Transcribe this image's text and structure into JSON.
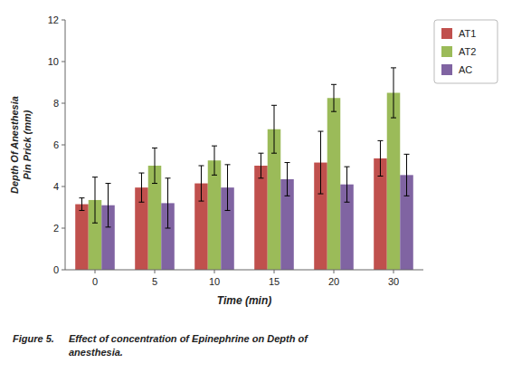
{
  "chart_data": {
    "type": "bar",
    "categories": [
      "0",
      "5",
      "10",
      "15",
      "20",
      "30"
    ],
    "series": [
      {
        "name": "AT1",
        "color": "#c0504d",
        "values": [
          3.15,
          3.95,
          4.15,
          5.0,
          5.15,
          5.35
        ],
        "errors": [
          0.3,
          0.7,
          0.85,
          0.6,
          1.5,
          0.85
        ]
      },
      {
        "name": "AT2",
        "color": "#9bbb59",
        "values": [
          3.35,
          5.0,
          5.25,
          6.75,
          8.25,
          8.5
        ],
        "errors": [
          1.1,
          0.85,
          0.7,
          1.15,
          0.65,
          1.2
        ]
      },
      {
        "name": "AC",
        "color": "#8064a2",
        "values": [
          3.1,
          3.2,
          3.95,
          4.35,
          4.1,
          4.55
        ],
        "errors": [
          1.05,
          1.2,
          1.1,
          0.8,
          0.85,
          1.0
        ]
      }
    ],
    "x_label": "Time (min)",
    "y_label": "Depth Of Anesthesia\nPin Prick (mm)",
    "ylim": [
      0,
      12
    ],
    "yticks": [
      0,
      2,
      4,
      6,
      8,
      10,
      12
    ],
    "grid": false,
    "legend": "right",
    "annotations": [
      "Figure 5.",
      "Effect of concentration of Epinephrine on Depth of\nanesthesia."
    ]
  }
}
